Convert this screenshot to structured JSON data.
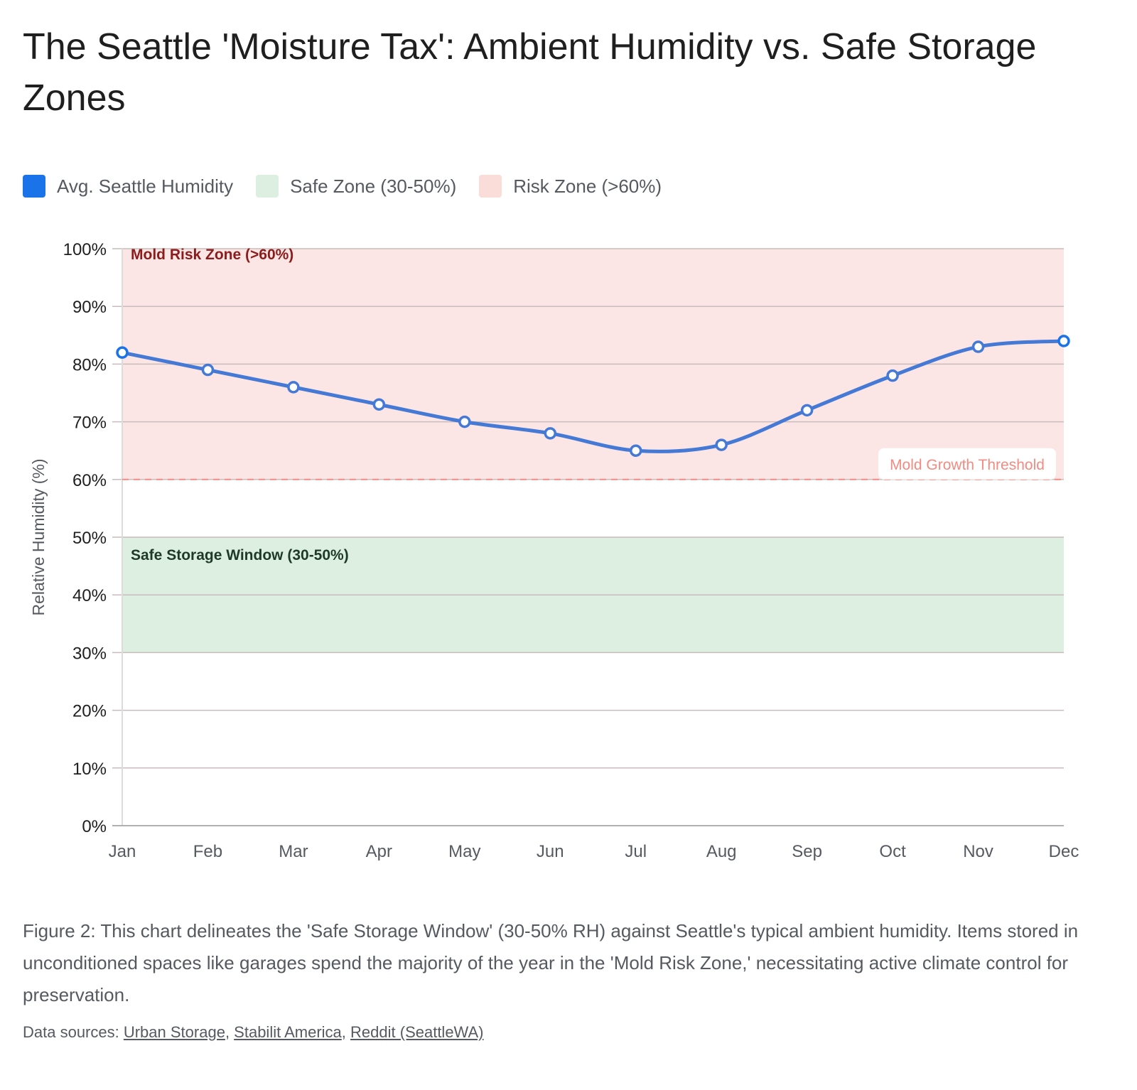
{
  "chart_data": {
    "type": "line",
    "title": "The Seattle 'Moisture Tax': Ambient Humidity vs. Safe Storage Zones",
    "xlabel": "",
    "ylabel": "Relative Humidity (%)",
    "ylim": [
      0,
      100
    ],
    "yticks": [
      "0%",
      "10%",
      "20%",
      "30%",
      "40%",
      "50%",
      "60%",
      "70%",
      "80%",
      "90%",
      "100%"
    ],
    "ytick_values": [
      0,
      10,
      20,
      30,
      40,
      50,
      60,
      70,
      80,
      90,
      100
    ],
    "categories": [
      "Jan",
      "Feb",
      "Mar",
      "Apr",
      "May",
      "Jun",
      "Jul",
      "Aug",
      "Sep",
      "Oct",
      "Nov",
      "Dec"
    ],
    "grid": true,
    "legend_position": "top-left",
    "series": [
      {
        "name": "Avg. Seattle Humidity",
        "color": "#4479d6",
        "values": [
          82,
          79,
          76,
          73,
          70,
          68,
          65,
          66,
          72,
          78,
          83,
          84
        ]
      }
    ],
    "bands": [
      {
        "name": "Safe Zone (30-50%)",
        "label": "Safe Storage Window (30-50%)",
        "from": 30,
        "to": 50,
        "color": "#dcefe1",
        "label_color": "#1e3a27"
      },
      {
        "name": "Risk Zone (>60%)",
        "label": "Mold Risk Zone (>60%)",
        "from": 60,
        "to": 100,
        "color": "#fbe6e5",
        "label_color": "#8a1c1c"
      }
    ],
    "threshold": {
      "value": 60,
      "label": "Mold Growth Threshold",
      "color": "#f28b82"
    },
    "legend": [
      {
        "label": "Avg. Seattle Humidity",
        "color": "#1a73e8"
      },
      {
        "label": "Safe Zone (30-50%)",
        "color": "#dcefe1"
      },
      {
        "label": "Risk Zone (>60%)",
        "color": "#fadcd9"
      }
    ]
  },
  "caption": "Figure 2: This chart delineates the 'Safe Storage Window' (30-50% RH) against Seattle's typical ambient humidity. Items stored in unconditioned spaces like garages spend the majority of the year in the 'Mold Risk Zone,' necessitating active climate control for preservation.",
  "sources": {
    "prefix": "Data sources: ",
    "links": [
      "Urban Storage",
      "Stabilit America",
      "Reddit (SeattleWA)"
    ]
  }
}
